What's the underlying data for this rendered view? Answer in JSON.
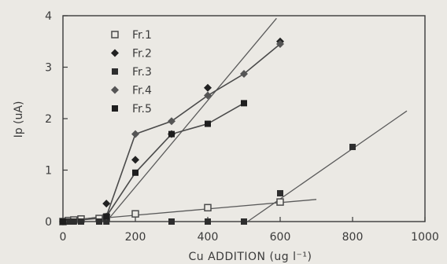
{
  "chart_data": {
    "type": "scatter",
    "xlabel": "Cu   ADDITION  (ug l⁻¹)",
    "ylabel": "Ip (uA)",
    "xlim": [
      0,
      1000
    ],
    "ylim": [
      0,
      4
    ],
    "x_ticks": [
      0,
      200,
      400,
      600,
      800,
      1000
    ],
    "y_ticks": [
      0,
      1,
      2,
      3,
      4
    ],
    "grid": false,
    "legend_position": "top-left",
    "series": [
      {
        "name": "Fr.1",
        "marker": "open-square",
        "color": "#4a4a4a",
        "points": [
          [
            0,
            0.0
          ],
          [
            15,
            0.02
          ],
          [
            30,
            0.03
          ],
          [
            50,
            0.05
          ],
          [
            100,
            0.06
          ],
          [
            120,
            0.08
          ],
          [
            200,
            0.15
          ],
          [
            400,
            0.27
          ],
          [
            600,
            0.38
          ]
        ],
        "fit": [
          [
            0,
            0.0
          ],
          [
            700,
            0.43
          ]
        ]
      },
      {
        "name": "Fr.2",
        "marker": "diamond",
        "color": "#222222",
        "points": [
          [
            0,
            0.0
          ],
          [
            120,
            0.35
          ],
          [
            200,
            1.2
          ],
          [
            300,
            1.7
          ],
          [
            400,
            2.6
          ],
          [
            600,
            3.5
          ]
        ],
        "fit": [
          [
            120,
            0.0
          ],
          [
            590,
            3.95
          ]
        ]
      },
      {
        "name": "Fr.3",
        "marker": "square",
        "color": "#2e2e2e",
        "points": [
          [
            0,
            0.0
          ],
          [
            15,
            0.0
          ],
          [
            30,
            0.0
          ],
          [
            50,
            0.0
          ],
          [
            100,
            0.0
          ],
          [
            120,
            0.0
          ],
          [
            300,
            0.0
          ],
          [
            400,
            0.0
          ],
          [
            500,
            0.0
          ],
          [
            600,
            0.55
          ],
          [
            800,
            1.45
          ]
        ],
        "fit": [
          [
            510,
            0.0
          ],
          [
            950,
            2.15
          ]
        ]
      },
      {
        "name": "Fr.4",
        "marker": "diamond",
        "color": "#555555",
        "points": [
          [
            0,
            0.0
          ],
          [
            120,
            0.1
          ],
          [
            200,
            1.7
          ],
          [
            300,
            1.95
          ],
          [
            400,
            2.45
          ],
          [
            500,
            2.87
          ],
          [
            600,
            3.45
          ]
        ],
        "fit": null
      },
      {
        "name": "Fr.5",
        "marker": "square",
        "color": "#1e1e1e",
        "points": [
          [
            0,
            0.0
          ],
          [
            120,
            0.1
          ],
          [
            200,
            0.95
          ],
          [
            300,
            1.7
          ],
          [
            400,
            1.9
          ],
          [
            500,
            2.3
          ]
        ],
        "fit": null
      }
    ]
  }
}
